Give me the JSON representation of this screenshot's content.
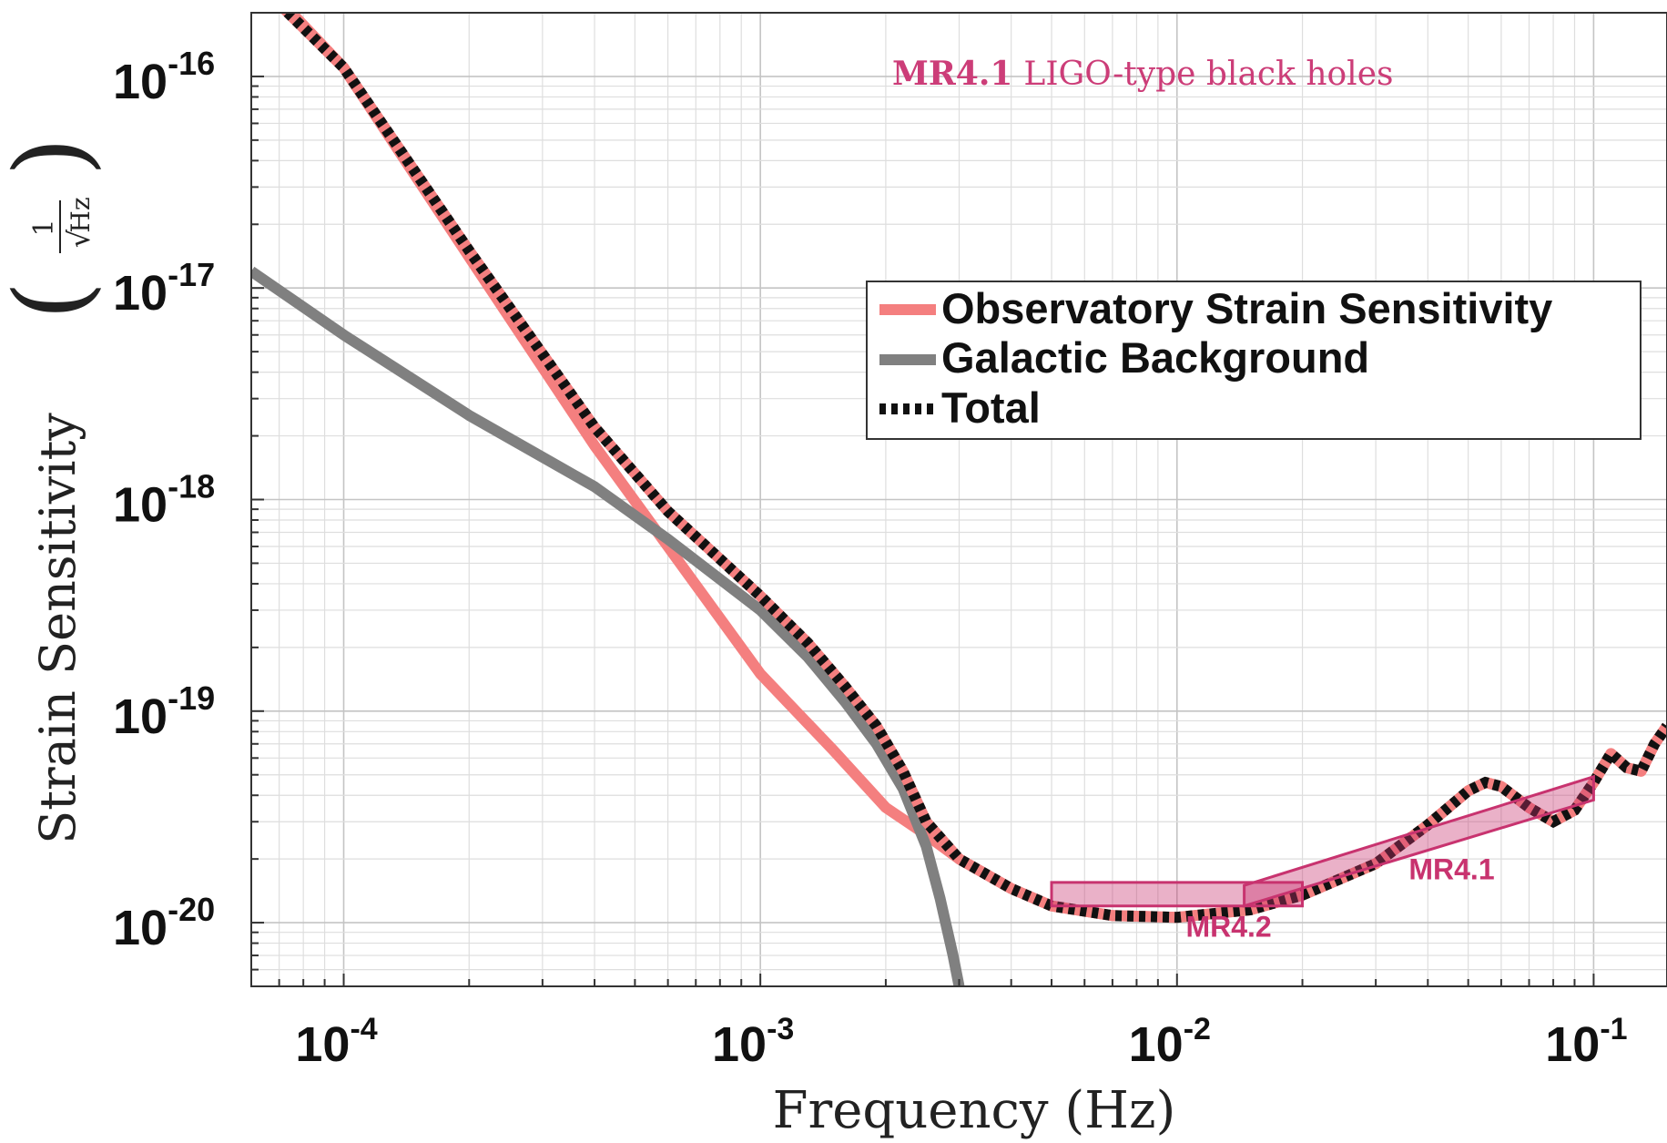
{
  "chart_data": {
    "type": "line",
    "x_scale": "log",
    "y_scale": "log",
    "xlabel": "Frequency (Hz)",
    "ylabel": "Strain Sensitivity",
    "ylabel_unit": {
      "numerator": "1",
      "radical": "√",
      "radicand": "Hz"
    },
    "xlim": [
      6e-05,
      0.15
    ],
    "ylim": [
      5e-21,
      2e-16
    ],
    "grid": true,
    "minor_grid": true,
    "x_ticks": [
      {
        "value": 0.0001,
        "base": "10",
        "exp": "-4"
      },
      {
        "value": 0.001,
        "base": "10",
        "exp": "-3"
      },
      {
        "value": 0.01,
        "base": "10",
        "exp": "-2"
      },
      {
        "value": 0.1,
        "base": "10",
        "exp": "-1"
      }
    ],
    "y_ticks": [
      {
        "value": 1e-20,
        "base": "10",
        "exp": "-20"
      },
      {
        "value": 1e-19,
        "base": "10",
        "exp": "-19"
      },
      {
        "value": 1e-18,
        "base": "10",
        "exp": "-18"
      },
      {
        "value": 1e-17,
        "base": "10",
        "exp": "-17"
      },
      {
        "value": 1e-16,
        "base": "10",
        "exp": "-16"
      }
    ],
    "legend_position": "upper-right",
    "series": [
      {
        "name": "Observatory Strain Sensitivity",
        "color": "#f47f7f",
        "style": "solid",
        "points": [
          [
            6e-05,
            4e-16
          ],
          [
            7.5e-05,
            2e-16
          ],
          [
            0.0001,
            1.1e-16
          ],
          [
            0.0002,
            1.4e-17
          ],
          [
            0.0004,
            1.8e-18
          ],
          [
            0.001,
            1.5e-19
          ],
          [
            0.0015,
            6.5e-20
          ],
          [
            0.002,
            3.5e-20
          ],
          [
            0.0025,
            2.6e-20
          ],
          [
            0.003,
            2e-20
          ],
          [
            0.004,
            1.45e-20
          ],
          [
            0.005,
            1.2e-20
          ],
          [
            0.007,
            1.08e-20
          ],
          [
            0.01,
            1.06e-20
          ],
          [
            0.015,
            1.15e-20
          ],
          [
            0.02,
            1.35e-20
          ],
          [
            0.03,
            1.9e-20
          ],
          [
            0.04,
            2.9e-20
          ],
          [
            0.05,
            4.2e-20
          ],
          [
            0.055,
            4.6e-20
          ],
          [
            0.06,
            4.4e-20
          ],
          [
            0.07,
            3.5e-20
          ],
          [
            0.08,
            3e-20
          ],
          [
            0.09,
            3.4e-20
          ],
          [
            0.1,
            4.6e-20
          ],
          [
            0.11,
            6.3e-20
          ],
          [
            0.12,
            5.4e-20
          ],
          [
            0.13,
            5.2e-20
          ],
          [
            0.14,
            7e-20
          ],
          [
            0.15,
            8.5e-20
          ]
        ]
      },
      {
        "name": "Galactic Background",
        "color": "#808080",
        "style": "solid",
        "points": [
          [
            6e-05,
            1.2e-17
          ],
          [
            0.0001,
            6e-18
          ],
          [
            0.0002,
            2.5e-18
          ],
          [
            0.0004,
            1.15e-18
          ],
          [
            0.0006,
            6.5e-19
          ],
          [
            0.001,
            3e-19
          ],
          [
            0.0013,
            1.8e-19
          ],
          [
            0.0016,
            1.1e-19
          ],
          [
            0.0019,
            7e-20
          ],
          [
            0.0022,
            4.3e-20
          ],
          [
            0.0025,
            2.3e-20
          ],
          [
            0.0027,
            1.3e-20
          ],
          [
            0.0029,
            7e-21
          ],
          [
            0.003,
            5e-21
          ]
        ]
      },
      {
        "name": "Total",
        "color": "#111111",
        "style": "dotted",
        "points": [
          [
            7e-05,
            2.2e-16
          ],
          [
            0.0001,
            1.1e-16
          ],
          [
            0.0002,
            1.5e-17
          ],
          [
            0.0004,
            2.2e-18
          ],
          [
            0.0006,
            8.8e-19
          ],
          [
            0.001,
            3.5e-19
          ],
          [
            0.0013,
            2.1e-19
          ],
          [
            0.0016,
            1.3e-19
          ],
          [
            0.0019,
            8.5e-20
          ],
          [
            0.0022,
            5.2e-20
          ],
          [
            0.0025,
            3e-20
          ],
          [
            0.003,
            2e-20
          ],
          [
            0.004,
            1.45e-20
          ],
          [
            0.005,
            1.2e-20
          ],
          [
            0.007,
            1.08e-20
          ],
          [
            0.01,
            1.06e-20
          ],
          [
            0.015,
            1.15e-20
          ],
          [
            0.02,
            1.35e-20
          ],
          [
            0.03,
            1.9e-20
          ],
          [
            0.04,
            2.9e-20
          ],
          [
            0.05,
            4.2e-20
          ],
          [
            0.055,
            4.6e-20
          ],
          [
            0.06,
            4.4e-20
          ],
          [
            0.07,
            3.5e-20
          ],
          [
            0.08,
            3e-20
          ],
          [
            0.09,
            3.4e-20
          ],
          [
            0.1,
            4.6e-20
          ],
          [
            0.11,
            6.3e-20
          ],
          [
            0.12,
            5.4e-20
          ],
          [
            0.13,
            5.2e-20
          ],
          [
            0.14,
            7e-20
          ],
          [
            0.15,
            8.5e-20
          ]
        ]
      }
    ],
    "boxes": [
      {
        "label": "MR4.2",
        "color": "#c8336f",
        "corners": [
          [
            0.005,
            1.2e-20
          ],
          [
            0.02,
            1.2e-20
          ],
          [
            0.02,
            1.55e-20
          ],
          [
            0.005,
            1.55e-20
          ]
        ]
      },
      {
        "label": "MR4.1",
        "color": "#c8336f",
        "corners": [
          [
            0.0145,
            1.2e-20
          ],
          [
            0.1,
            3.8e-20
          ],
          [
            0.1,
            4.9e-20
          ],
          [
            0.0145,
            1.5e-20
          ]
        ]
      }
    ],
    "annotation": {
      "bold": "MR4.1",
      "text": "LIGO-type black holes"
    }
  }
}
